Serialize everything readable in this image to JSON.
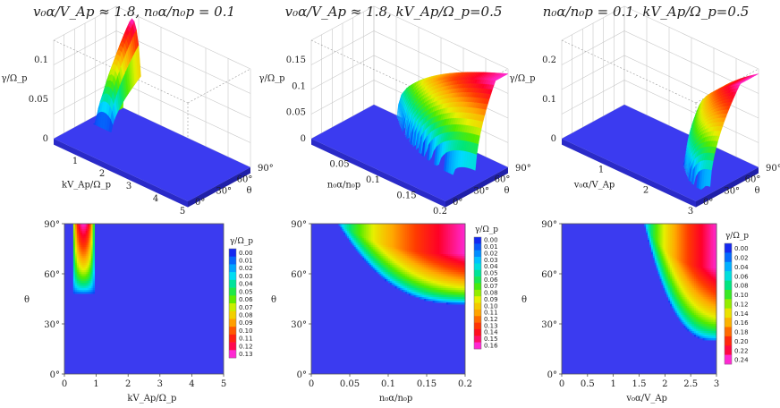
{
  "chart_data": [
    {
      "type": "surface3d",
      "title": "v₀α/V_Ap ≈ 1.8,  n₀α/n₀p = 0.1",
      "x_label": "kV_Ap/Ω_p",
      "x_ticks": [
        "1",
        "2",
        "3",
        "4",
        "5"
      ],
      "x_range": [
        0,
        5
      ],
      "y_label": "θ",
      "y_ticks": [
        "0°",
        "30°",
        "60°",
        "90°"
      ],
      "z_label": "γ/Ω_p",
      "z_ticks": [
        "0",
        "0.05",
        "0.1"
      ],
      "z_max": 0.13,
      "region": {
        "x_center": 0.6,
        "x_half_width": 0.35,
        "theta_min": 48,
        "theta_max": 90
      }
    },
    {
      "type": "surface3d",
      "title": "v₀α/V_Ap ≈ 1.8,  kV_Ap/Ω_p=0.5",
      "x_label": "n₀α/n₀p",
      "x_ticks": [
        "0.05",
        "0.1",
        "0.15",
        "0.2"
      ],
      "x_range": [
        0,
        0.2
      ],
      "y_label": "θ",
      "y_ticks": [
        "0°",
        "30°",
        "60°",
        "90°"
      ],
      "z_label": "γ/Ω_p",
      "z_ticks": [
        "0",
        "0.05",
        "0.1",
        "0.15"
      ],
      "z_max": 0.16,
      "region": {
        "x_onset": 0.035,
        "theta_asymptote": 42
      }
    },
    {
      "type": "surface3d",
      "title": "n₀α/n₀p = 0.1,  kV_Ap/Ω_p=0.5",
      "x_label": "v₀α/V_Ap",
      "x_ticks": [
        "1",
        "2",
        "3"
      ],
      "x_range": [
        0,
        3
      ],
      "y_label": "θ",
      "y_ticks": [
        "0°",
        "30°",
        "60°",
        "90°"
      ],
      "z_label": "γ/Ω_p",
      "z_ticks": [
        "0",
        "0.1",
        "0.2"
      ],
      "z_max": 0.24,
      "region": {
        "x_onset": 1.6,
        "theta_asymptote": 20
      }
    },
    {
      "type": "heatmap",
      "x_label": "kV_Ap/Ω_p",
      "x_ticks": [
        "0",
        "1",
        "2",
        "3",
        "4",
        "5"
      ],
      "x_range": [
        0,
        5
      ],
      "y_label": "θ",
      "y_ticks": [
        "0°",
        "30°",
        "60°",
        "90°"
      ],
      "y_range": [
        0,
        90
      ],
      "legend_title": "γ/Ω_p",
      "legend": [
        "0.00",
        "0.01",
        "0.02",
        "0.03",
        "0.04",
        "0.05",
        "0.06",
        "0.07",
        "0.08",
        "0.09",
        "0.10",
        "0.11",
        "0.12",
        "0.13"
      ],
      "z_max": 0.13,
      "region": {
        "x_center": 0.6,
        "x_half_width": 0.35,
        "theta_min": 48,
        "theta_max": 90
      }
    },
    {
      "type": "heatmap",
      "x_label": "n₀α/n₀p",
      "x_ticks": [
        "0",
        "0.05",
        "0.1",
        "0.15",
        "0.2"
      ],
      "x_range": [
        0,
        0.2
      ],
      "y_label": "θ",
      "y_ticks": [
        "0°",
        "30°",
        "60°",
        "90°"
      ],
      "y_range": [
        0,
        90
      ],
      "legend_title": "γ/Ω_p",
      "legend": [
        "0.00",
        "0.01",
        "0.02",
        "0.03",
        "0.04",
        "0.05",
        "0.06",
        "0.07",
        "0.08",
        "0.09",
        "0.10",
        "0.11",
        "0.12",
        "0.13",
        "0.14",
        "0.15",
        "0.16"
      ],
      "z_max": 0.16,
      "region": {
        "x_onset": 0.035,
        "theta_asymptote": 42
      }
    },
    {
      "type": "heatmap",
      "x_label": "v₀α/V_Ap",
      "x_ticks": [
        "0",
        "0.5",
        "1",
        "1.5",
        "2",
        "2.5",
        "3"
      ],
      "x_range": [
        0,
        3
      ],
      "y_label": "θ",
      "y_ticks": [
        "0°",
        "30°",
        "60°",
        "90°"
      ],
      "y_range": [
        0,
        90
      ],
      "legend_title": "γ/Ω_p",
      "legend": [
        "0.00",
        "0.02",
        "0.04",
        "0.06",
        "0.08",
        "0.10",
        "0.12",
        "0.14",
        "0.16",
        "0.18",
        "0.20",
        "0.22",
        "0.24"
      ],
      "z_max": 0.24,
      "region": {
        "x_onset": 1.6,
        "theta_asymptote": 20
      }
    }
  ],
  "colors": {
    "base": "#3b3bf0",
    "hot": "#ff0033",
    "peak": "#ff33cc"
  }
}
